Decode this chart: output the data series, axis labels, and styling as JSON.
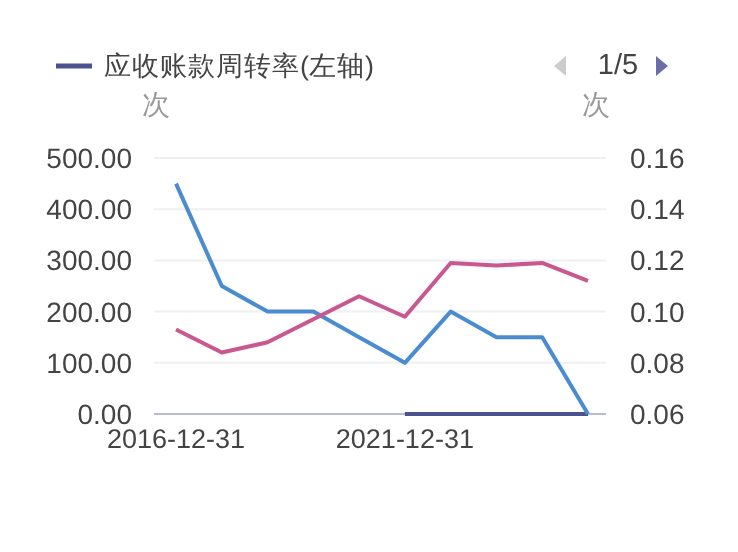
{
  "chart_data": {
    "type": "line",
    "categories": [
      "2016-12-31",
      null,
      null,
      null,
      null,
      "2021-12-31",
      null,
      null,
      null,
      null
    ],
    "series": [
      {
        "name": "应收账款周转率(左轴)",
        "color": "#4a5290",
        "values": [
          null,
          null,
          null,
          null,
          null,
          0,
          0,
          0,
          0,
          0
        ]
      },
      {
        "color": "#4a8ccf",
        "values": [
          450,
          250,
          200,
          200,
          150,
          100,
          200,
          150,
          150,
          0
        ]
      },
      {
        "color": "#c8588f",
        "axis": "y2",
        "values": [
          0.093,
          0.084,
          0.088,
          0.097,
          0.106,
          0.098,
          0.119,
          0.118,
          0.119,
          0.112
        ]
      }
    ],
    "ylabel": "次",
    "y2label": "次",
    "ylim": [
      0,
      500
    ],
    "yticks": [
      {
        "value": 0,
        "label": "0.00"
      },
      {
        "value": 100,
        "label": "100.00"
      },
      {
        "value": 200,
        "label": "200.00"
      },
      {
        "value": 300,
        "label": "300.00"
      },
      {
        "value": 400,
        "label": "400.00"
      },
      {
        "value": 500,
        "label": "500.00"
      }
    ],
    "y2lim": [
      0.06,
      0.16
    ],
    "y2ticks": [
      0.06,
      0.08,
      {
        "value": 0.1,
        "label": "0.10"
      },
      0.12,
      0.14,
      0.16
    ],
    "grid": "y",
    "legend": "top",
    "marker": "none",
    "line_style": "solid",
    "annotations": [
      "1/5"
    ]
  }
}
